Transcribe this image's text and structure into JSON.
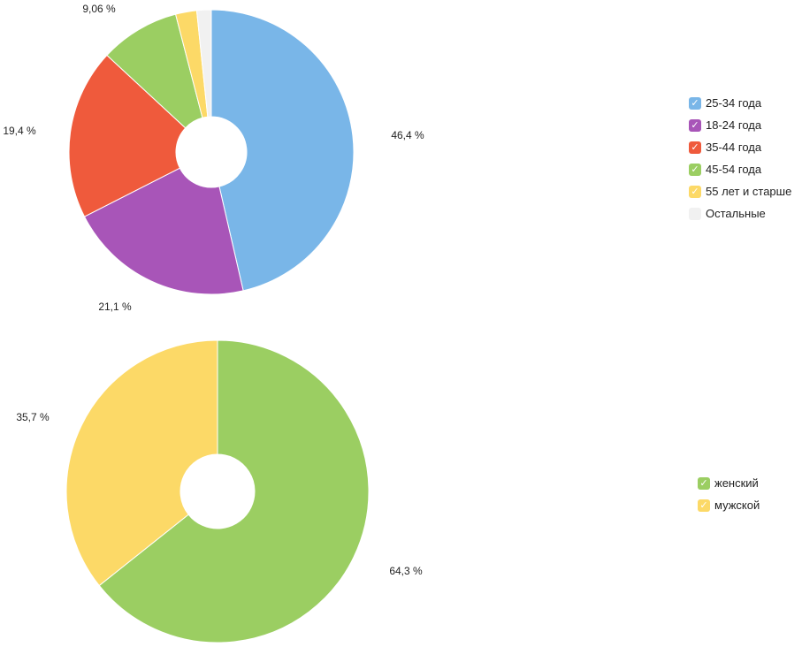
{
  "chart_data": [
    {
      "type": "pie",
      "donut": true,
      "legend_position": "right",
      "slices": [
        {
          "label": "25-34 года",
          "value": 46.4,
          "value_label": "46,4 %",
          "color": "#79b6e8",
          "checked": true
        },
        {
          "label": "18-24 года",
          "value": 21.1,
          "value_label": "21,1 %",
          "color": "#a855b8",
          "checked": true
        },
        {
          "label": "35-44 года",
          "value": 19.4,
          "value_label": "19,4 %",
          "color": "#ef5a3c",
          "checked": true
        },
        {
          "label": "45-54 года",
          "value": 9.06,
          "value_label": "9,06 %",
          "color": "#9bce62",
          "checked": true
        },
        {
          "label": "55 лет и старше",
          "value": 2.4,
          "value_label": "",
          "color": "#fcd967",
          "checked": true
        },
        {
          "label": "Остальные",
          "value": 1.64,
          "value_label": "",
          "color": "#f1f1f1",
          "checked": false
        }
      ]
    },
    {
      "type": "pie",
      "donut": true,
      "legend_position": "right",
      "slices": [
        {
          "label": "женский",
          "value": 64.3,
          "value_label": "64,3 %",
          "color": "#9bce62",
          "checked": true
        },
        {
          "label": "мужской",
          "value": 35.7,
          "value_label": "35,7 %",
          "color": "#fcd967",
          "checked": true
        }
      ]
    }
  ],
  "check_glyph": "✓"
}
